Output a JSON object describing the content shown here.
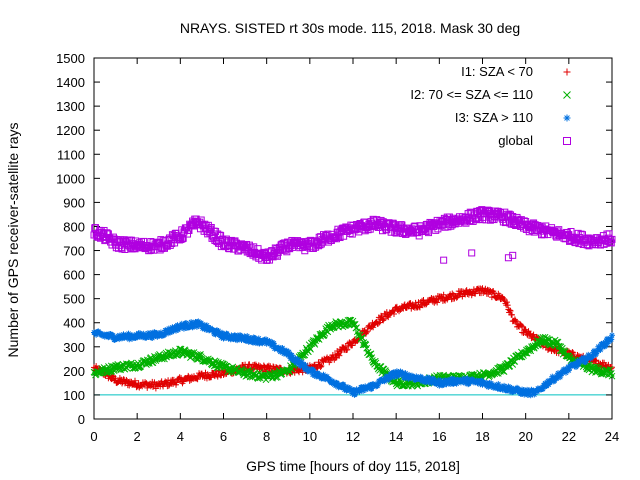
{
  "chart_data": {
    "type": "scatter",
    "title": "NRAYS. SISTED rt 30s mode. 115, 2018. Mask 30 deg",
    "xlabel": "GPS time [hours of doy 115, 2018]",
    "ylabel": "Number of GPS receiver-satellite rays",
    "xlim": [
      0,
      24
    ],
    "ylim": [
      0,
      1500
    ],
    "xticks": [
      0,
      2,
      4,
      6,
      8,
      10,
      12,
      14,
      16,
      18,
      20,
      22,
      24
    ],
    "yticks": [
      0,
      100,
      200,
      300,
      400,
      500,
      600,
      700,
      800,
      900,
      1000,
      1100,
      1200,
      1300,
      1400,
      1500
    ],
    "reference_line": {
      "y": 100,
      "color": "#00c0c0"
    },
    "legend_position": "top-right",
    "series": [
      {
        "name": "I1: SZA < 70",
        "marker": "+",
        "color": "#e00000",
        "keypoints": {
          "x": [
            0,
            0.5,
            1,
            2,
            3,
            4,
            5,
            6,
            7,
            8,
            9,
            10,
            11,
            12,
            13,
            14,
            15,
            16,
            17,
            18,
            19,
            19.5,
            20,
            21,
            22,
            23,
            24
          ],
          "y": [
            210,
            190,
            160,
            145,
            140,
            160,
            180,
            190,
            215,
            210,
            200,
            210,
            250,
            320,
            400,
            455,
            475,
            500,
            520,
            535,
            500,
            400,
            360,
            300,
            270,
            240,
            215
          ]
        }
      },
      {
        "name": "I2: 70 <= SZA <= 110",
        "marker": "x",
        "color": "#00b000",
        "keypoints": {
          "x": [
            0,
            1,
            2,
            3,
            4,
            5,
            6,
            7,
            8,
            9,
            10,
            11,
            12,
            13,
            14,
            15,
            16,
            17,
            18,
            19,
            20,
            20.8,
            21.5,
            22,
            23,
            24
          ],
          "y": [
            190,
            215,
            225,
            255,
            280,
            255,
            215,
            190,
            175,
            200,
            300,
            390,
            400,
            230,
            150,
            150,
            170,
            170,
            180,
            210,
            280,
            330,
            310,
            250,
            210,
            190
          ]
        }
      },
      {
        "name": "I3: SZA > 110",
        "marker": "*",
        "color": "#0070e0",
        "keypoints": {
          "x": [
            0,
            1,
            2,
            3,
            4,
            4.8,
            6,
            7,
            8,
            9,
            10,
            11,
            12,
            13,
            14,
            15,
            16,
            17,
            18,
            19,
            20,
            20.5,
            21,
            22,
            23,
            24
          ],
          "y": [
            355,
            340,
            345,
            350,
            385,
            395,
            345,
            335,
            320,
            270,
            200,
            160,
            110,
            140,
            190,
            170,
            150,
            160,
            150,
            130,
            110,
            110,
            150,
            210,
            260,
            340
          ]
        }
      },
      {
        "name": "global",
        "marker": "square",
        "color": "#b000e0",
        "keypoints": {
          "x": [
            0,
            0.5,
            1,
            2,
            3,
            4,
            4.8,
            5.5,
            6,
            7,
            8,
            9,
            10,
            11,
            12,
            13,
            14,
            15,
            16,
            17,
            18,
            19,
            20,
            21,
            22,
            23,
            24
          ],
          "y": [
            780,
            760,
            730,
            720,
            720,
            760,
            820,
            770,
            730,
            710,
            670,
            720,
            720,
            760,
            790,
            810,
            790,
            780,
            810,
            830,
            850,
            840,
            800,
            780,
            760,
            740,
            750
          ]
        },
        "outliers": {
          "x": [
            16.2,
            17.5,
            19.2,
            19.4
          ],
          "y": [
            660,
            690,
            670,
            680
          ]
        }
      }
    ]
  }
}
